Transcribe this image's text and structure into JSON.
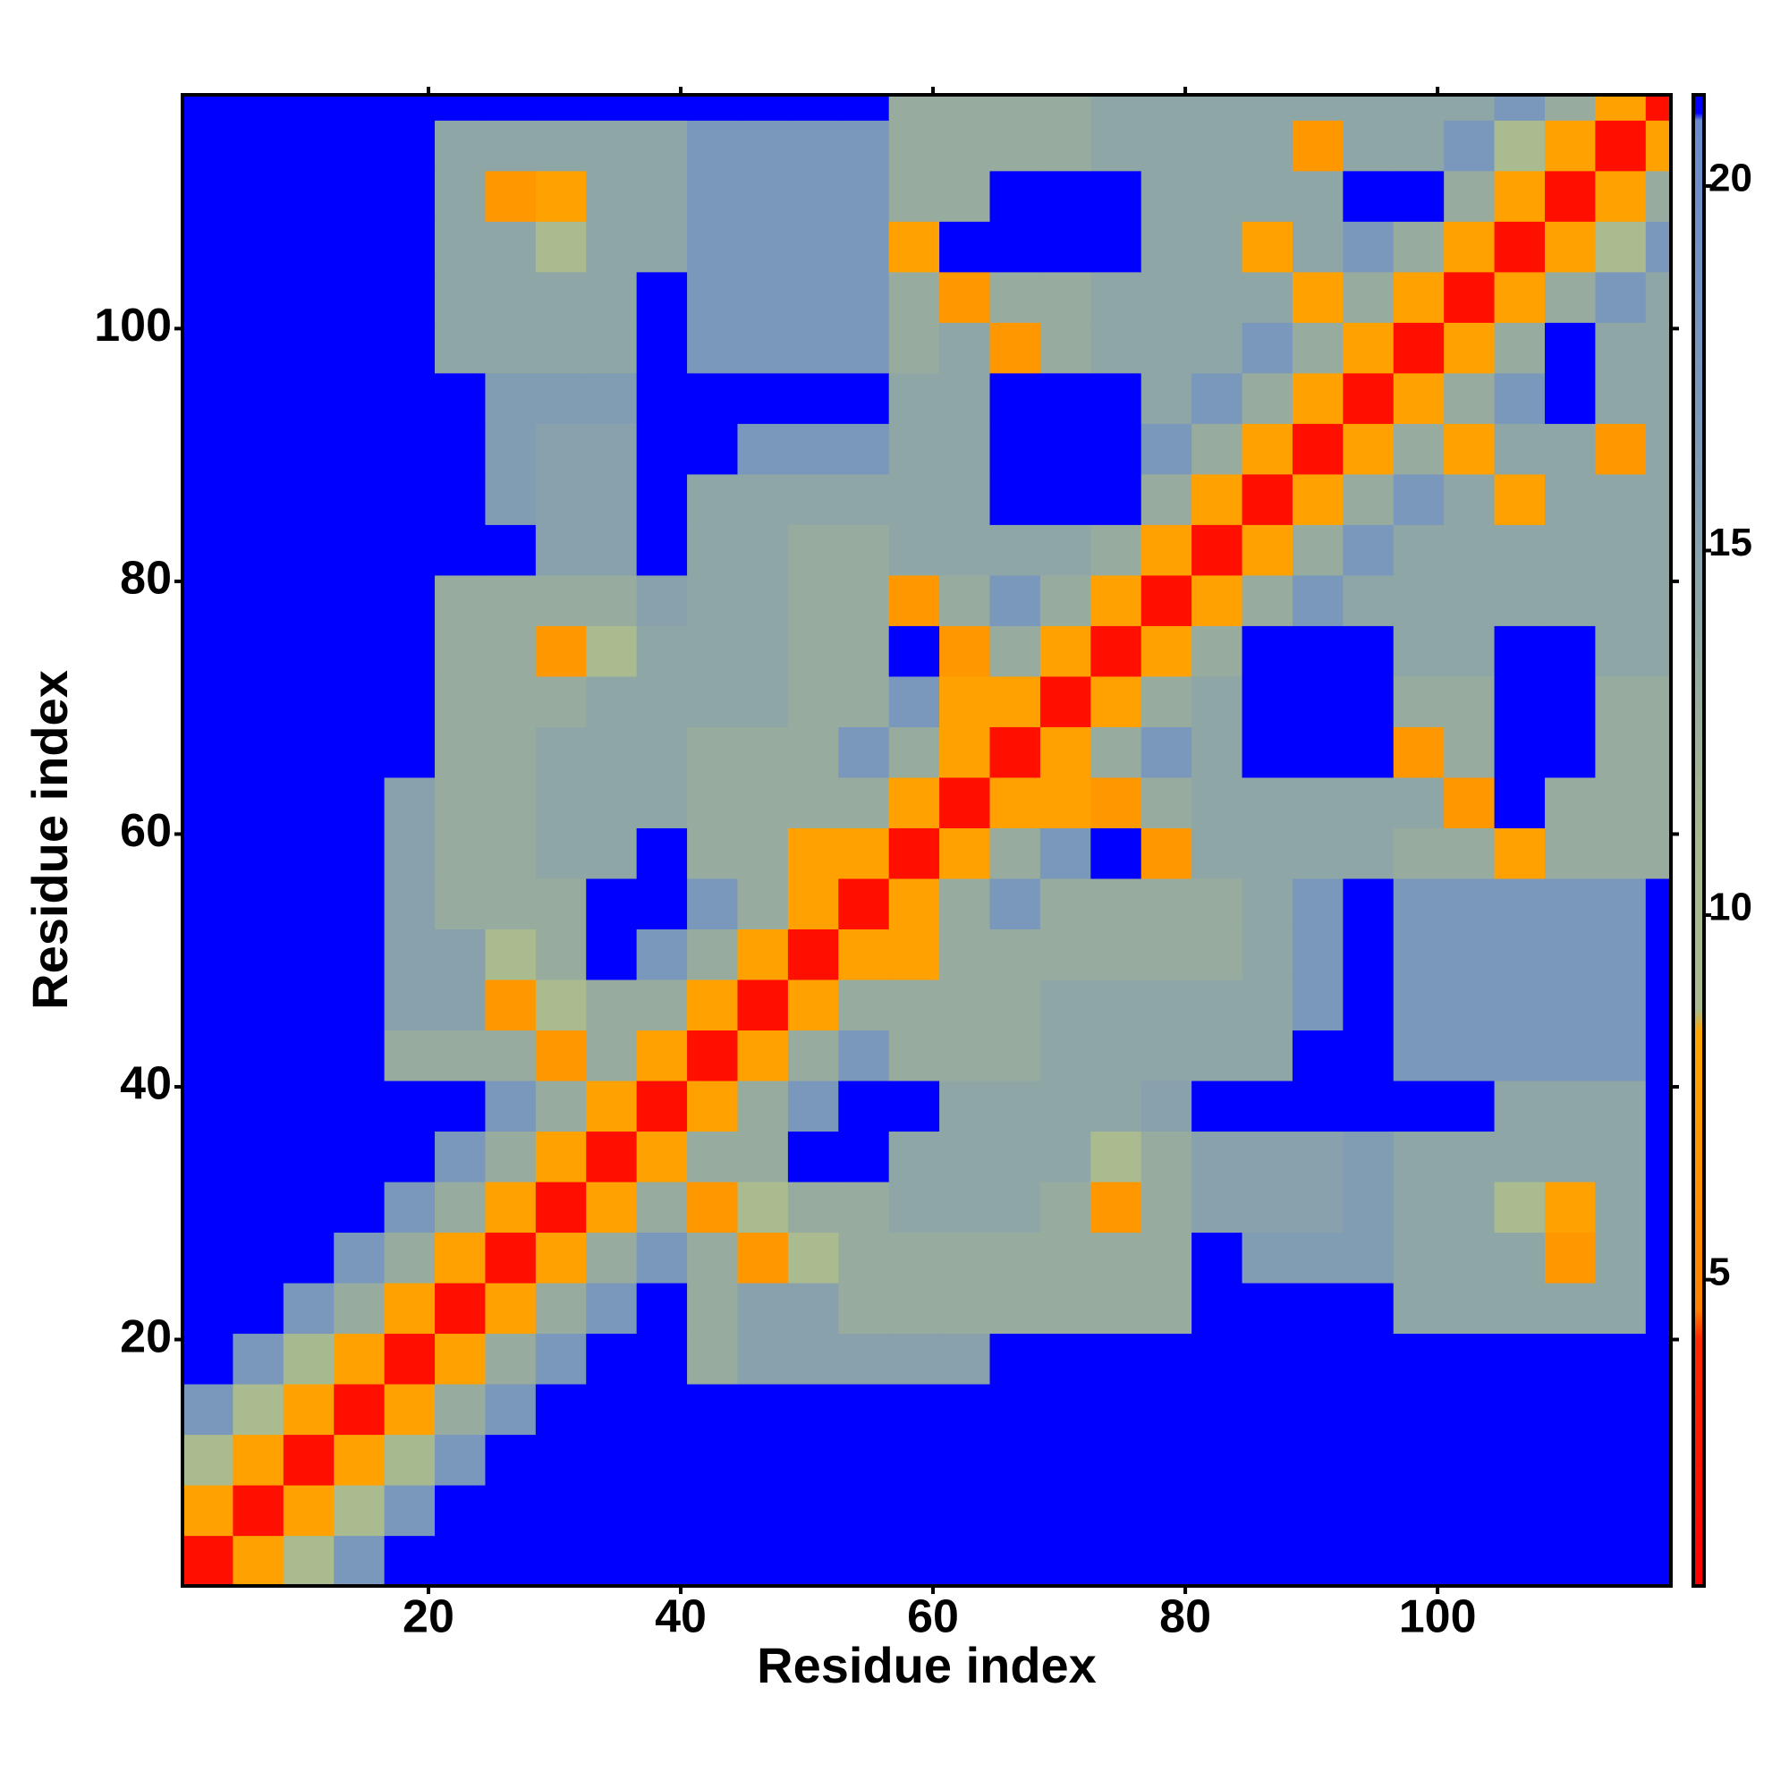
{
  "chart_data": {
    "type": "heatmap",
    "xlabel": "Residue index",
    "ylabel": "Residue index",
    "x": [
      2.5,
      6.5,
      10.5,
      14.5,
      18.5,
      22.5,
      26.5,
      30.5,
      34.5,
      38.5,
      42.5,
      46.5,
      50.5,
      54.5,
      58.5,
      62.5,
      66.5,
      70.5,
      74.5,
      78.5,
      82.5,
      86.5,
      90.5,
      94.5,
      98.5,
      102.5,
      106.5,
      110.5,
      114.5,
      118.5
    ],
    "y": [
      2.5,
      6.5,
      10.5,
      14.5,
      18.5,
      22.5,
      26.5,
      30.5,
      34.5,
      38.5,
      42.5,
      46.5,
      50.5,
      54.5,
      58.5,
      62.5,
      66.5,
      70.5,
      74.5,
      78.5,
      82.5,
      86.5,
      90.5,
      94.5,
      98.5,
      102.5,
      106.5,
      110.5,
      114.5,
      118.5
    ],
    "z": [
      [
        2,
        8,
        9,
        17,
        22,
        22,
        22,
        22,
        22,
        22,
        22,
        22,
        22,
        22,
        22,
        22,
        22,
        22,
        22,
        22,
        22,
        22,
        22,
        22,
        22,
        22,
        22,
        22,
        22,
        22
      ],
      [
        8,
        2,
        8,
        9,
        17,
        22,
        22,
        22,
        22,
        22,
        22,
        22,
        22,
        22,
        22,
        22,
        22,
        22,
        22,
        22,
        22,
        22,
        22,
        22,
        22,
        22,
        22,
        22,
        22,
        22
      ],
      [
        9,
        8,
        2,
        8,
        11,
        17,
        22,
        22,
        22,
        22,
        22,
        22,
        22,
        22,
        22,
        22,
        22,
        22,
        22,
        22,
        22,
        22,
        22,
        22,
        22,
        22,
        22,
        22,
        22,
        22
      ],
      [
        17,
        9,
        8,
        2,
        8,
        13,
        17,
        22,
        22,
        22,
        22,
        22,
        22,
        22,
        22,
        22,
        22,
        22,
        22,
        22,
        22,
        22,
        22,
        22,
        22,
        22,
        22,
        22,
        22,
        22
      ],
      [
        22,
        17,
        11,
        8,
        2,
        8,
        13,
        17,
        22,
        22,
        13,
        15,
        15,
        15,
        15,
        15,
        22,
        22,
        22,
        22,
        22,
        22,
        22,
        22,
        22,
        22,
        22,
        22,
        22,
        22
      ],
      [
        22,
        22,
        17,
        13,
        8,
        2,
        8,
        13,
        17,
        22,
        13,
        15,
        15,
        13,
        13,
        13,
        13,
        13,
        13,
        13,
        22,
        22,
        22,
        22,
        14,
        14,
        14,
        14,
        14,
        22
      ],
      [
        22,
        22,
        22,
        17,
        13,
        8,
        2,
        8,
        13,
        17,
        13,
        7,
        9,
        13,
        13,
        13,
        13,
        13,
        13,
        13,
        22,
        16,
        16,
        16,
        14,
        14,
        14,
        7,
        14,
        22
      ],
      [
        22,
        22,
        22,
        22,
        17,
        13,
        8,
        2,
        8,
        13,
        7,
        9,
        13,
        13,
        14,
        14,
        14,
        13,
        7,
        13,
        15,
        15,
        15,
        16,
        14,
        14,
        9,
        8,
        14,
        22
      ],
      [
        22,
        22,
        22,
        22,
        22,
        17,
        13,
        8,
        2,
        8,
        13,
        13,
        22,
        22,
        14,
        14,
        14,
        14,
        9,
        13,
        15,
        15,
        15,
        16,
        14,
        14,
        14,
        14,
        14,
        22
      ],
      [
        22,
        22,
        22,
        22,
        22,
        22,
        17,
        13,
        8,
        2,
        8,
        13,
        17,
        22,
        22,
        14,
        14,
        14,
        14,
        15,
        22,
        22,
        22,
        22,
        22,
        22,
        14,
        14,
        14,
        22
      ],
      [
        22,
        22,
        22,
        22,
        13,
        13,
        13,
        7,
        13,
        8,
        2,
        8,
        13,
        17,
        13,
        13,
        13,
        14,
        14,
        14,
        14,
        14,
        22,
        22,
        17,
        17,
        17,
        17,
        17,
        22
      ],
      [
        22,
        22,
        22,
        22,
        15,
        15,
        7,
        9,
        13,
        13,
        8,
        2,
        8,
        13,
        13,
        13,
        13,
        14,
        14,
        14,
        14,
        14,
        17,
        22,
        17,
        17,
        17,
        17,
        17,
        22
      ],
      [
        22,
        22,
        22,
        22,
        15,
        15,
        9,
        13,
        22,
        17,
        13,
        8,
        2,
        8,
        8,
        13,
        13,
        13,
        13,
        13,
        13,
        14,
        17,
        22,
        17,
        17,
        17,
        17,
        17,
        22
      ],
      [
        22,
        22,
        22,
        22,
        15,
        13,
        13,
        13,
        22,
        22,
        17,
        13,
        8,
        2,
        8,
        13,
        17,
        13,
        13,
        13,
        13,
        14,
        17,
        22,
        17,
        17,
        17,
        17,
        17,
        22
      ],
      [
        22,
        22,
        22,
        22,
        15,
        13,
        13,
        14,
        14,
        22,
        13,
        13,
        8,
        8,
        2,
        8,
        13,
        17,
        22,
        7,
        14,
        14,
        14,
        14,
        13,
        13,
        8,
        13,
        13,
        13
      ],
      [
        22,
        22,
        22,
        22,
        15,
        13,
        13,
        14,
        14,
        14,
        13,
        13,
        13,
        13,
        8,
        2,
        8,
        8,
        7,
        13,
        14,
        14,
        14,
        14,
        14,
        7,
        22,
        13,
        13,
        13
      ],
      [
        22,
        22,
        22,
        22,
        22,
        13,
        13,
        14,
        14,
        14,
        13,
        13,
        13,
        17,
        13,
        8,
        2,
        8,
        13,
        17,
        14,
        22,
        22,
        22,
        7,
        13,
        22,
        22,
        13,
        13
      ],
      [
        22,
        22,
        22,
        22,
        22,
        13,
        13,
        13,
        14,
        14,
        14,
        14,
        13,
        13,
        17,
        8,
        8,
        2,
        8,
        13,
        14,
        22,
        22,
        22,
        13,
        13,
        22,
        22,
        13,
        13
      ],
      [
        22,
        22,
        22,
        22,
        22,
        13,
        13,
        7,
        9,
        14,
        14,
        14,
        13,
        13,
        22,
        7,
        13,
        8,
        2,
        8,
        13,
        22,
        22,
        22,
        14,
        14,
        22,
        22,
        14,
        14
      ],
      [
        22,
        22,
        22,
        22,
        22,
        13,
        13,
        13,
        13,
        15,
        14,
        14,
        13,
        13,
        7,
        13,
        17,
        13,
        8,
        2,
        8,
        13,
        17,
        14,
        14,
        14,
        14,
        14,
        14,
        14
      ],
      [
        22,
        22,
        22,
        22,
        22,
        22,
        22,
        15,
        15,
        22,
        14,
        14,
        13,
        13,
        14,
        14,
        14,
        14,
        13,
        8,
        2,
        8,
        13,
        17,
        14,
        14,
        14,
        14,
        14,
        14
      ],
      [
        22,
        22,
        22,
        22,
        22,
        22,
        16,
        15,
        15,
        22,
        14,
        14,
        14,
        14,
        14,
        14,
        22,
        22,
        22,
        13,
        8,
        2,
        8,
        13,
        17,
        14,
        8,
        14,
        14,
        14
      ],
      [
        22,
        22,
        22,
        22,
        22,
        22,
        16,
        15,
        15,
        22,
        22,
        17,
        17,
        17,
        14,
        14,
        22,
        22,
        22,
        17,
        13,
        8,
        2,
        8,
        13,
        8,
        14,
        14,
        7,
        14
      ],
      [
        22,
        22,
        22,
        22,
        22,
        22,
        16,
        16,
        16,
        22,
        22,
        22,
        22,
        22,
        14,
        14,
        22,
        22,
        22,
        14,
        17,
        13,
        8,
        2,
        8,
        13,
        17,
        22,
        14,
        14
      ],
      [
        22,
        22,
        22,
        22,
        22,
        14,
        14,
        14,
        14,
        22,
        17,
        17,
        17,
        17,
        13,
        14,
        7,
        13,
        14,
        14,
        14,
        17,
        13,
        8,
        2,
        8,
        13,
        22,
        14,
        14
      ],
      [
        22,
        22,
        22,
        22,
        22,
        14,
        14,
        14,
        14,
        22,
        17,
        17,
        17,
        17,
        13,
        7,
        13,
        13,
        14,
        14,
        14,
        14,
        8,
        13,
        8,
        2,
        8,
        13,
        17,
        14
      ],
      [
        22,
        22,
        22,
        22,
        22,
        14,
        14,
        9,
        14,
        14,
        17,
        17,
        17,
        17,
        8,
        22,
        22,
        22,
        22,
        14,
        14,
        8,
        14,
        17,
        13,
        8,
        2,
        8,
        9,
        17
      ],
      [
        22,
        22,
        22,
        22,
        22,
        14,
        7,
        8,
        14,
        14,
        17,
        17,
        17,
        17,
        13,
        13,
        22,
        22,
        22,
        14,
        14,
        14,
        14,
        22,
        22,
        13,
        8,
        2,
        8,
        13
      ],
      [
        22,
        22,
        22,
        22,
        22,
        14,
        14,
        14,
        14,
        14,
        17,
        17,
        17,
        17,
        13,
        13,
        13,
        13,
        14,
        14,
        14,
        14,
        7,
        14,
        14,
        17,
        9,
        8,
        2,
        8
      ],
      [
        22,
        22,
        22,
        22,
        22,
        22,
        22,
        22,
        22,
        22,
        22,
        22,
        22,
        22,
        13,
        13,
        13,
        13,
        14,
        14,
        14,
        14,
        14,
        14,
        14,
        14,
        17,
        13,
        8,
        2
      ]
    ],
    "xlim": [
      0.5,
      118.5
    ],
    "ylim": [
      0.5,
      118.5
    ],
    "xticks": [
      20,
      40,
      60,
      80,
      100
    ],
    "yticks": [
      20,
      40,
      60,
      80,
      100
    ],
    "colorbar": {
      "lim": [
        0.8,
        21.25
      ],
      "ticks": [
        5,
        10,
        15,
        20
      ],
      "colorscale": [
        [
          0.8,
          "#ff0000"
        ],
        [
          4.2,
          "#ff2a00"
        ],
        [
          4.6,
          "#ff8000"
        ],
        [
          8.4,
          "#ffa500"
        ],
        [
          8.7,
          "#a9bb8f"
        ],
        [
          11,
          "#a7b98f"
        ],
        [
          14,
          "#8fa6a6"
        ],
        [
          17,
          "#7a98bb"
        ],
        [
          20.9,
          "#6a8ccc"
        ],
        [
          21,
          "#0000ff"
        ]
      ]
    }
  }
}
